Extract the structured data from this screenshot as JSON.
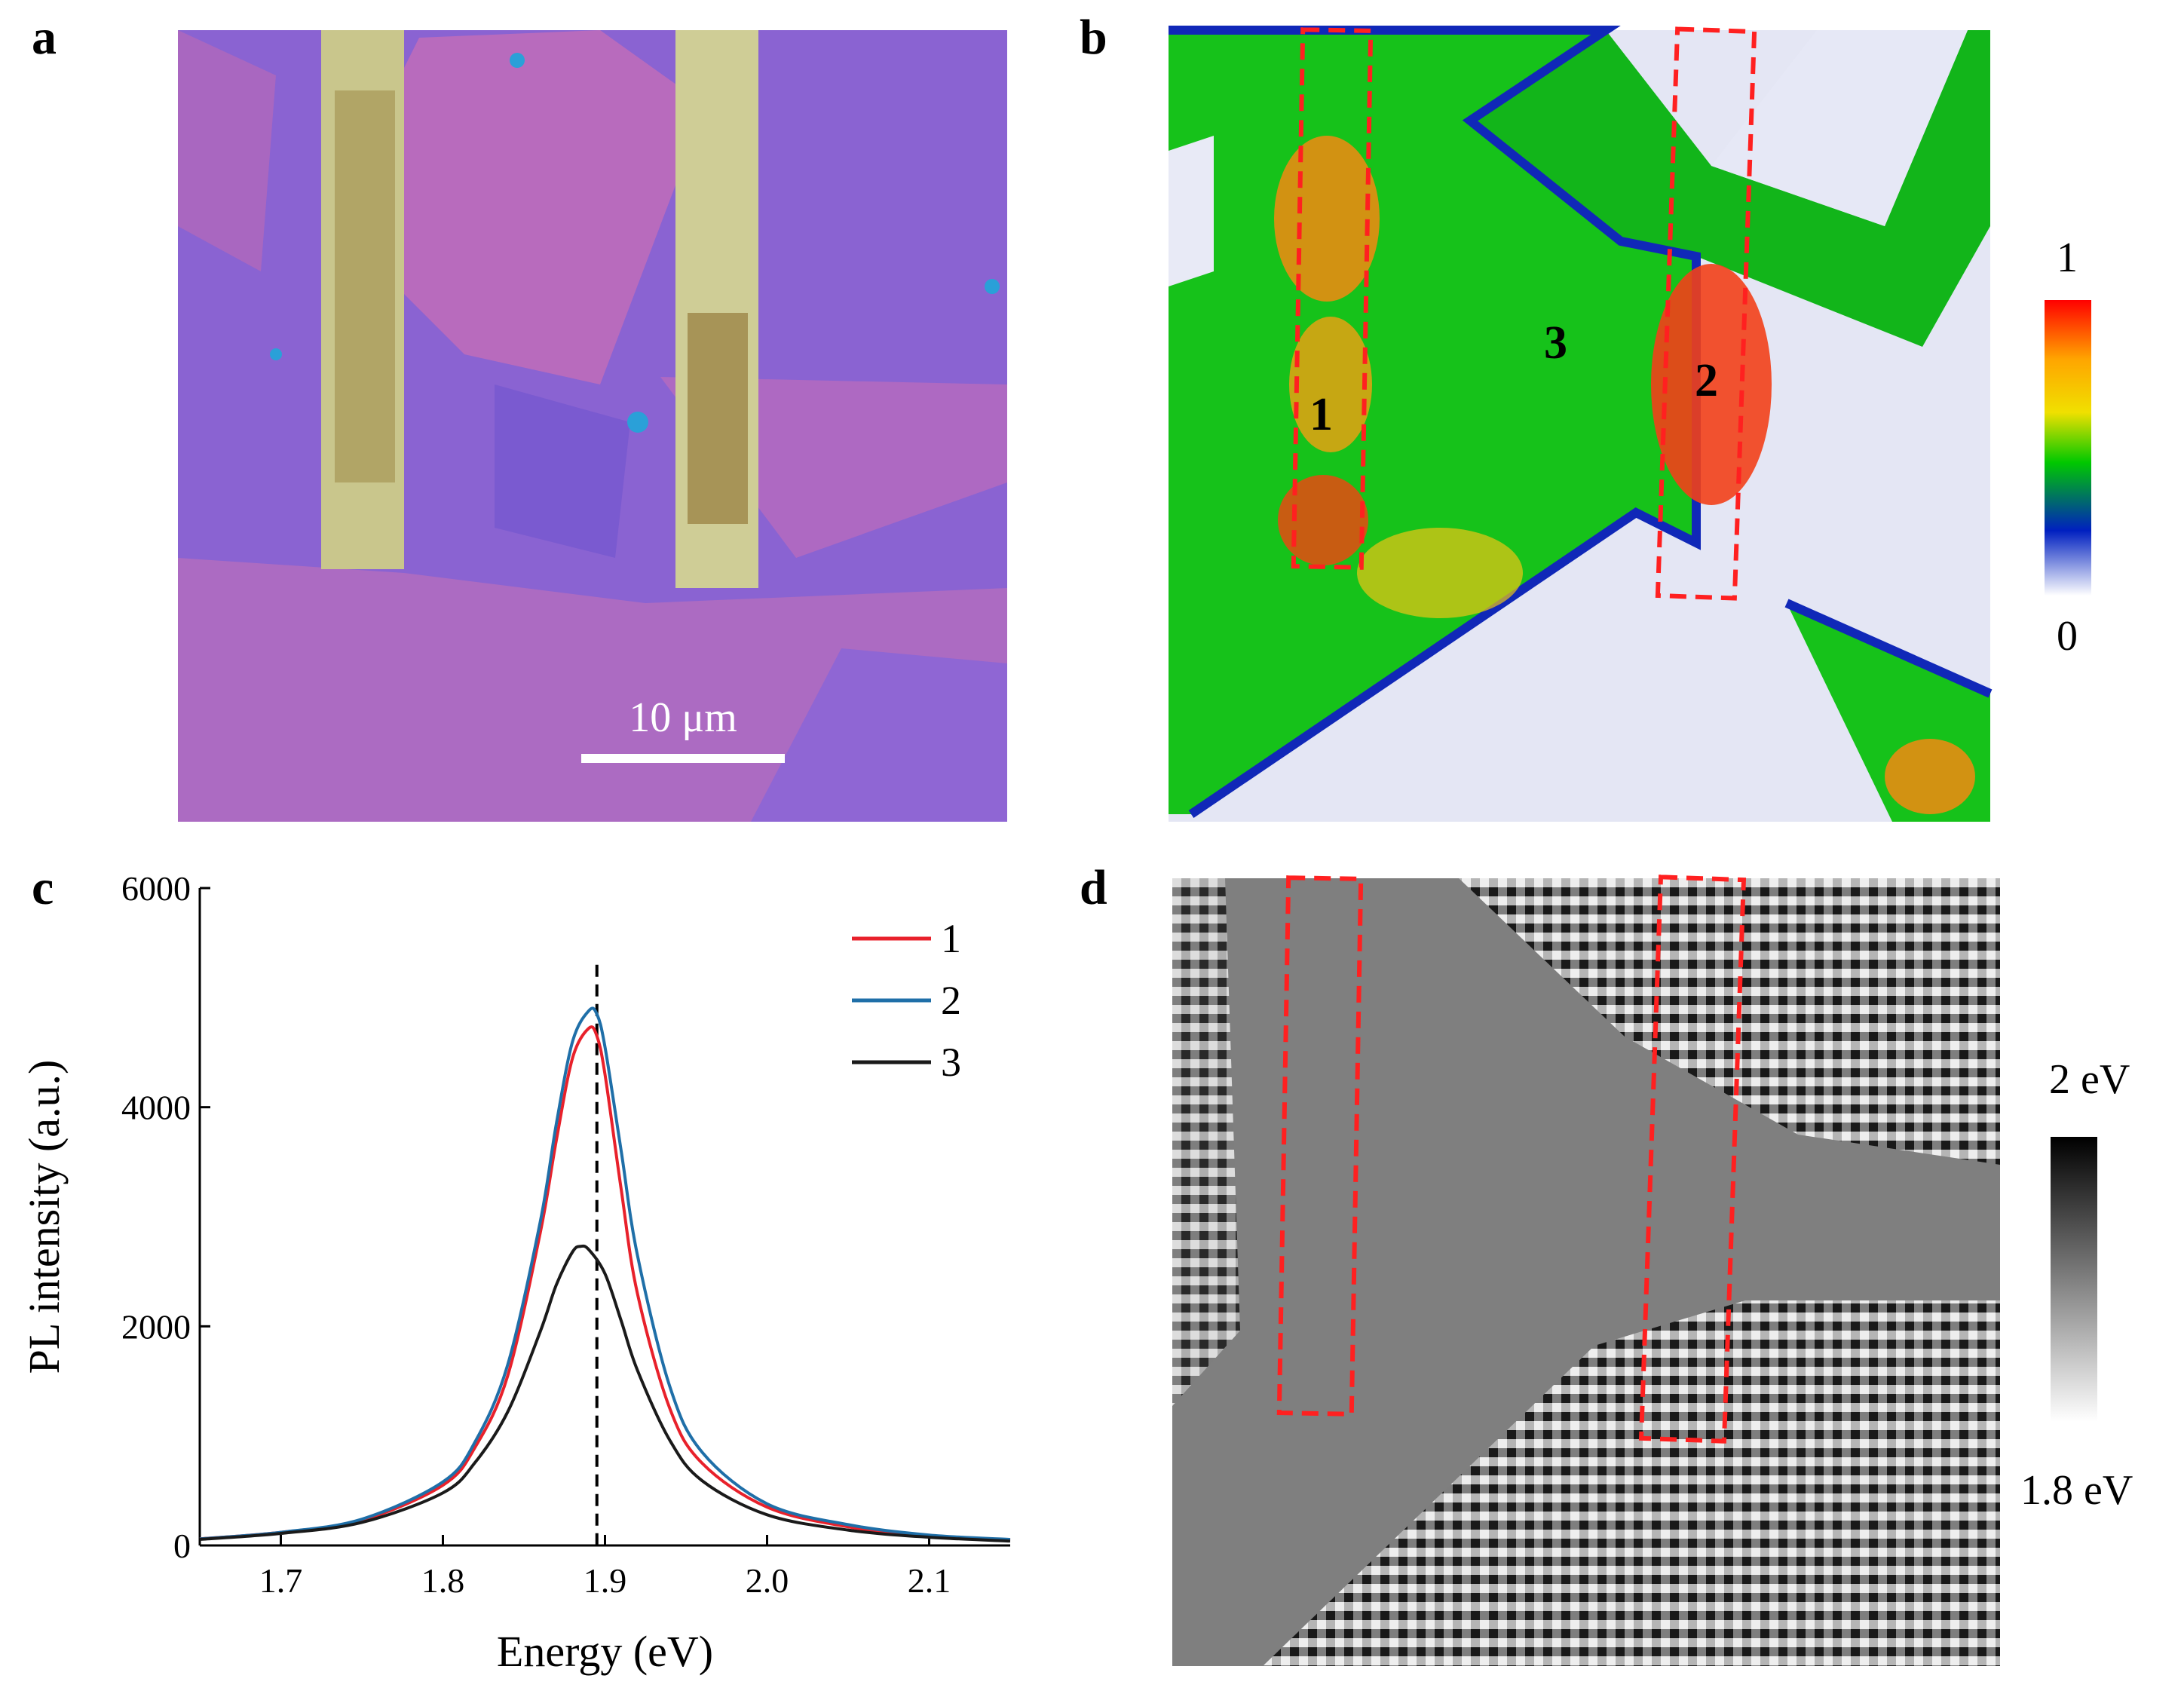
{
  "panels": {
    "a": {
      "label": "a",
      "scalebar_text": "10 μm",
      "colors": {
        "substrate": "#8a63d2",
        "flake": "#c06cba",
        "electrode": "#c8c88a"
      }
    },
    "b": {
      "label": "b",
      "region_labels": [
        "1",
        "2",
        "3"
      ],
      "colorbar": {
        "max_label": "1",
        "min_label": "0",
        "colors": [
          "#ff0000",
          "#ffa500",
          "#f0e000",
          "#00c800",
          "#0020c0",
          "#ffffff"
        ]
      }
    },
    "c": {
      "label": "c"
    },
    "d": {
      "label": "d",
      "colorbar": {
        "max_label": "2 eV",
        "min_label": "1.8 eV",
        "colors": [
          "#000000",
          "#ffffff"
        ]
      }
    }
  },
  "chart_data": {
    "type": "line",
    "xlabel": "Energy (eV)",
    "ylabel": "PL intensity (a.u.)",
    "xlim": [
      1.65,
      2.15
    ],
    "ylim": [
      0,
      6000
    ],
    "xticks": [
      1.7,
      1.8,
      1.9,
      2.0,
      2.1
    ],
    "xtick_labels": [
      "1.7",
      "1.8",
      "1.9",
      "2.0",
      "2.1"
    ],
    "yticks": [
      0,
      2000,
      4000,
      6000
    ],
    "ytick_labels": [
      "0",
      "2000",
      "4000",
      "6000"
    ],
    "reference_line_x": 1.895,
    "legend_position": "top-right",
    "series": [
      {
        "name": "1",
        "color": "#e8212b",
        "x": [
          1.65,
          1.7,
          1.75,
          1.8,
          1.82,
          1.84,
          1.86,
          1.87,
          1.88,
          1.89,
          1.895,
          1.9,
          1.91,
          1.92,
          1.94,
          1.96,
          2.0,
          2.05,
          2.1,
          2.15
        ],
        "y": [
          60,
          120,
          230,
          550,
          900,
          1550,
          2850,
          3700,
          4450,
          4720,
          4650,
          4300,
          3250,
          2300,
          1250,
          750,
          350,
          170,
          90,
          50
        ]
      },
      {
        "name": "2",
        "color": "#1f6fa8",
        "x": [
          1.65,
          1.7,
          1.75,
          1.8,
          1.82,
          1.84,
          1.86,
          1.87,
          1.88,
          1.89,
          1.895,
          1.9,
          1.91,
          1.92,
          1.94,
          1.96,
          2.0,
          2.05,
          2.1,
          2.15
        ],
        "y": [
          60,
          120,
          240,
          580,
          950,
          1650,
          2950,
          3850,
          4600,
          4880,
          4850,
          4550,
          3600,
          2650,
          1450,
          850,
          380,
          190,
          95,
          55
        ]
      },
      {
        "name": "3",
        "color": "#1a1a1a",
        "x": [
          1.65,
          1.7,
          1.75,
          1.8,
          1.82,
          1.84,
          1.86,
          1.87,
          1.88,
          1.885,
          1.89,
          1.9,
          1.91,
          1.92,
          1.94,
          1.96,
          2.0,
          2.05,
          2.1,
          2.15
        ],
        "y": [
          55,
          110,
          210,
          480,
          760,
          1220,
          1950,
          2380,
          2680,
          2730,
          2700,
          2480,
          2050,
          1600,
          960,
          590,
          280,
          140,
          75,
          40
        ]
      }
    ]
  }
}
